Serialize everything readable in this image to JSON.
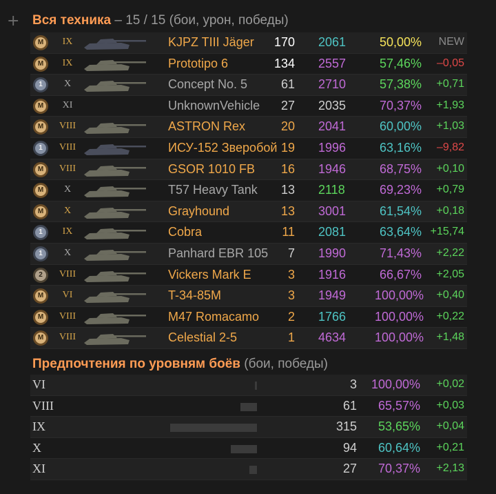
{
  "header": {
    "plus_icon": "+",
    "title_highlight": "Вся техника",
    "title_rest": " – 15 / 15 (бои, урон, победы)"
  },
  "vehicles": [
    {
      "medal": "M",
      "medal_type": "gold",
      "tier": "IX",
      "tier_color": "#d4a44a",
      "name": "KJPZ TIII Jäger",
      "name_color": "#f0a84a",
      "battles": "170",
      "battles_color": "#ffffff",
      "damage": "2061",
      "damage_color": "#4ec4c4",
      "winrate": "50,00%",
      "winrate_color": "#f5e35a",
      "delta": "NEW",
      "delta_color": "#8a8a8a",
      "tank_color": "#4a4e5c"
    },
    {
      "medal": "M",
      "medal_type": "gold",
      "tier": "IX",
      "tier_color": "#d4a44a",
      "name": "Prototipo 6",
      "name_color": "#f0a84a",
      "battles": "134",
      "battles_color": "#ffffff",
      "damage": "2557",
      "damage_color": "#c06ad6",
      "winrate": "57,46%",
      "winrate_color": "#5cd65c",
      "delta": "–0,05",
      "delta_color": "#e04848",
      "tank_color": "#6b6b5e"
    },
    {
      "medal": "1",
      "medal_type": "silver",
      "tier": "X",
      "tier_color": "#a8a8a8",
      "name": "Concept No. 5",
      "name_color": "#a8a8a8",
      "battles": "61",
      "battles_color": "#cfcfcf",
      "damage": "2710",
      "damage_color": "#c06ad6",
      "winrate": "57,38%",
      "winrate_color": "#5cd65c",
      "delta": "+0,71",
      "delta_color": "#5cd65c",
      "tank_color": "#6b6b5e"
    },
    {
      "medal": "M",
      "medal_type": "gold",
      "tier": "XI",
      "tier_color": "#a8a8a8",
      "name": "UnknownVehicle",
      "name_color": "#a8a8a8",
      "battles": "27",
      "battles_color": "#cfcfcf",
      "damage": "2035",
      "damage_color": "#cfcfcf",
      "winrate": "70,37%",
      "winrate_color": "#c06ad6",
      "delta": "+1,93",
      "delta_color": "#5cd65c",
      "tank_color": "none"
    },
    {
      "medal": "M",
      "medal_type": "gold",
      "tier": "VIII",
      "tier_color": "#d4a44a",
      "name": "ASTRON Rex",
      "name_color": "#f0a84a",
      "battles": "20",
      "battles_color": "#f0a84a",
      "damage": "2041",
      "damage_color": "#c06ad6",
      "winrate": "60,00%",
      "winrate_color": "#4ec4c4",
      "delta": "+1,03",
      "delta_color": "#5cd65c",
      "tank_color": "#6b6b5e"
    },
    {
      "medal": "1",
      "medal_type": "silver",
      "tier": "VIII",
      "tier_color": "#d4a44a",
      "name": "ИСУ-152 Зверобой",
      "name_color": "#f0a84a",
      "battles": "19",
      "battles_color": "#f0a84a",
      "damage": "1996",
      "damage_color": "#c06ad6",
      "winrate": "63,16%",
      "winrate_color": "#4ec4c4",
      "delta": "–9,82",
      "delta_color": "#e04848",
      "tank_color": "#4a4e5c"
    },
    {
      "medal": "M",
      "medal_type": "gold",
      "tier": "VIII",
      "tier_color": "#d4a44a",
      "name": "GSOR 1010 FB",
      "name_color": "#f0a84a",
      "battles": "16",
      "battles_color": "#f0a84a",
      "damage": "1946",
      "damage_color": "#c06ad6",
      "winrate": "68,75%",
      "winrate_color": "#c06ad6",
      "delta": "+0,10",
      "delta_color": "#5cd65c",
      "tank_color": "#6b6b5e"
    },
    {
      "medal": "M",
      "medal_type": "gold",
      "tier": "X",
      "tier_color": "#a8a8a8",
      "name": "T57 Heavy Tank",
      "name_color": "#a8a8a8",
      "battles": "13",
      "battles_color": "#cfcfcf",
      "damage": "2118",
      "damage_color": "#5cd65c",
      "winrate": "69,23%",
      "winrate_color": "#c06ad6",
      "delta": "+0,79",
      "delta_color": "#5cd65c",
      "tank_color": "#6b6b5e"
    },
    {
      "medal": "M",
      "medal_type": "gold",
      "tier": "X",
      "tier_color": "#d4a44a",
      "name": "Grayhound",
      "name_color": "#f0a84a",
      "battles": "13",
      "battles_color": "#f0a84a",
      "damage": "3001",
      "damage_color": "#c06ad6",
      "winrate": "61,54%",
      "winrate_color": "#4ec4c4",
      "delta": "+0,18",
      "delta_color": "#5cd65c",
      "tank_color": "#6b6b5e"
    },
    {
      "medal": "1",
      "medal_type": "silver",
      "tier": "IX",
      "tier_color": "#d4a44a",
      "name": "Cobra",
      "name_color": "#f0a84a",
      "battles": "11",
      "battles_color": "#f0a84a",
      "damage": "2081",
      "damage_color": "#4ec4c4",
      "winrate": "63,64%",
      "winrate_color": "#4ec4c4",
      "delta": "+15,74",
      "delta_color": "#5cd65c",
      "tank_color": "#6b6b5e"
    },
    {
      "medal": "1",
      "medal_type": "silver",
      "tier": "X",
      "tier_color": "#a8a8a8",
      "name": "Panhard EBR 105",
      "name_color": "#a8a8a8",
      "battles": "7",
      "battles_color": "#cfcfcf",
      "damage": "1990",
      "damage_color": "#c06ad6",
      "winrate": "71,43%",
      "winrate_color": "#c06ad6",
      "delta": "+2,22",
      "delta_color": "#5cd65c",
      "tank_color": "#6b6b5e"
    },
    {
      "medal": "2",
      "medal_type": "bronze",
      "tier": "VIII",
      "tier_color": "#d4a44a",
      "name": "Vickers Mark E",
      "name_color": "#f0a84a",
      "battles": "3",
      "battles_color": "#f0a84a",
      "damage": "1916",
      "damage_color": "#c06ad6",
      "winrate": "66,67%",
      "winrate_color": "#c06ad6",
      "delta": "+2,05",
      "delta_color": "#5cd65c",
      "tank_color": "#6b6b5e"
    },
    {
      "medal": "M",
      "medal_type": "gold",
      "tier": "VI",
      "tier_color": "#d4a44a",
      "name": "T-34-85M",
      "name_color": "#f0a84a",
      "battles": "3",
      "battles_color": "#f0a84a",
      "damage": "1949",
      "damage_color": "#c06ad6",
      "winrate": "100,00%",
      "winrate_color": "#c06ad6",
      "delta": "+0,40",
      "delta_color": "#5cd65c",
      "tank_color": "#6b6b5e"
    },
    {
      "medal": "M",
      "medal_type": "gold",
      "tier": "VIII",
      "tier_color": "#d4a44a",
      "name": "M47 Romacamo",
      "name_color": "#f0a84a",
      "battles": "2",
      "battles_color": "#f0a84a",
      "damage": "1766",
      "damage_color": "#4ec4c4",
      "winrate": "100,00%",
      "winrate_color": "#c06ad6",
      "delta": "+0,22",
      "delta_color": "#5cd65c",
      "tank_color": "#6b6b5e"
    },
    {
      "medal": "M",
      "medal_type": "gold",
      "tier": "VIII",
      "tier_color": "#d4a44a",
      "name": "Celestial 2-5",
      "name_color": "#f0a84a",
      "battles": "1",
      "battles_color": "#f0a84a",
      "damage": "4634",
      "damage_color": "#c06ad6",
      "winrate": "100,00%",
      "winrate_color": "#c06ad6",
      "delta": "+1,48",
      "delta_color": "#5cd65c",
      "tank_color": "#6b6b5e"
    }
  ],
  "preferences": {
    "title_highlight": "Предпочтения по уровням боёв",
    "title_rest": " (бои, победы)",
    "rows": [
      {
        "tier": "VI",
        "bar": 0.01,
        "battles": "3",
        "winrate": "100,00%",
        "winrate_color": "#c06ad6",
        "delta": "+0,02",
        "delta_color": "#5cd65c"
      },
      {
        "tier": "VIII",
        "bar": 0.194,
        "battles": "61",
        "winrate": "65,57%",
        "winrate_color": "#c06ad6",
        "delta": "+0,03",
        "delta_color": "#5cd65c"
      },
      {
        "tier": "IX",
        "bar": 1.0,
        "battles": "315",
        "winrate": "53,65%",
        "winrate_color": "#5cd65c",
        "delta": "+0,04",
        "delta_color": "#5cd65c"
      },
      {
        "tier": "X",
        "bar": 0.298,
        "battles": "94",
        "winrate": "60,64%",
        "winrate_color": "#4ec4c4",
        "delta": "+0,21",
        "delta_color": "#5cd65c"
      },
      {
        "tier": "XI",
        "bar": 0.086,
        "battles": "27",
        "winrate": "70,37%",
        "winrate_color": "#c06ad6",
        "delta": "+2,13",
        "delta_color": "#5cd65c"
      }
    ]
  }
}
